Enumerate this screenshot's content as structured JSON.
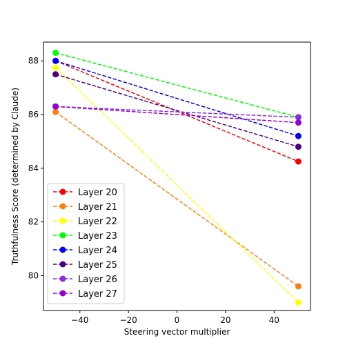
{
  "chart_data": {
    "type": "line",
    "title": "",
    "xlabel": "Steering vector multiplier",
    "ylabel": "Truthfulness Score (determined by Claude)",
    "xlim": [
      -55,
      55
    ],
    "ylim": [
      78.7,
      88.7
    ],
    "xticks": [
      -40,
      -20,
      0,
      20,
      40
    ],
    "yticks": [
      80,
      82,
      84,
      86,
      88
    ],
    "grid": false,
    "legend_position": "lower-left",
    "x": [
      -50,
      50
    ],
    "series": [
      {
        "name": "Layer 20",
        "values": [
          88.0,
          84.25
        ],
        "color": "#ff0000"
      },
      {
        "name": "Layer 21",
        "values": [
          86.1,
          79.6
        ],
        "color": "#ff7f0e"
      },
      {
        "name": "Layer 22",
        "values": [
          87.75,
          79.0
        ],
        "color": "#ffff00"
      },
      {
        "name": "Layer 23",
        "values": [
          88.3,
          85.9
        ],
        "color": "#00ff00"
      },
      {
        "name": "Layer 24",
        "values": [
          88.0,
          85.2
        ],
        "color": "#0000ff"
      },
      {
        "name": "Layer 25",
        "values": [
          87.5,
          84.8
        ],
        "color": "#4b0082"
      },
      {
        "name": "Layer 26",
        "values": [
          86.3,
          85.9
        ],
        "color": "#8a2be2"
      },
      {
        "name": "Layer 27",
        "values": [
          86.3,
          85.7
        ],
        "color": "#9400d3"
      }
    ]
  }
}
